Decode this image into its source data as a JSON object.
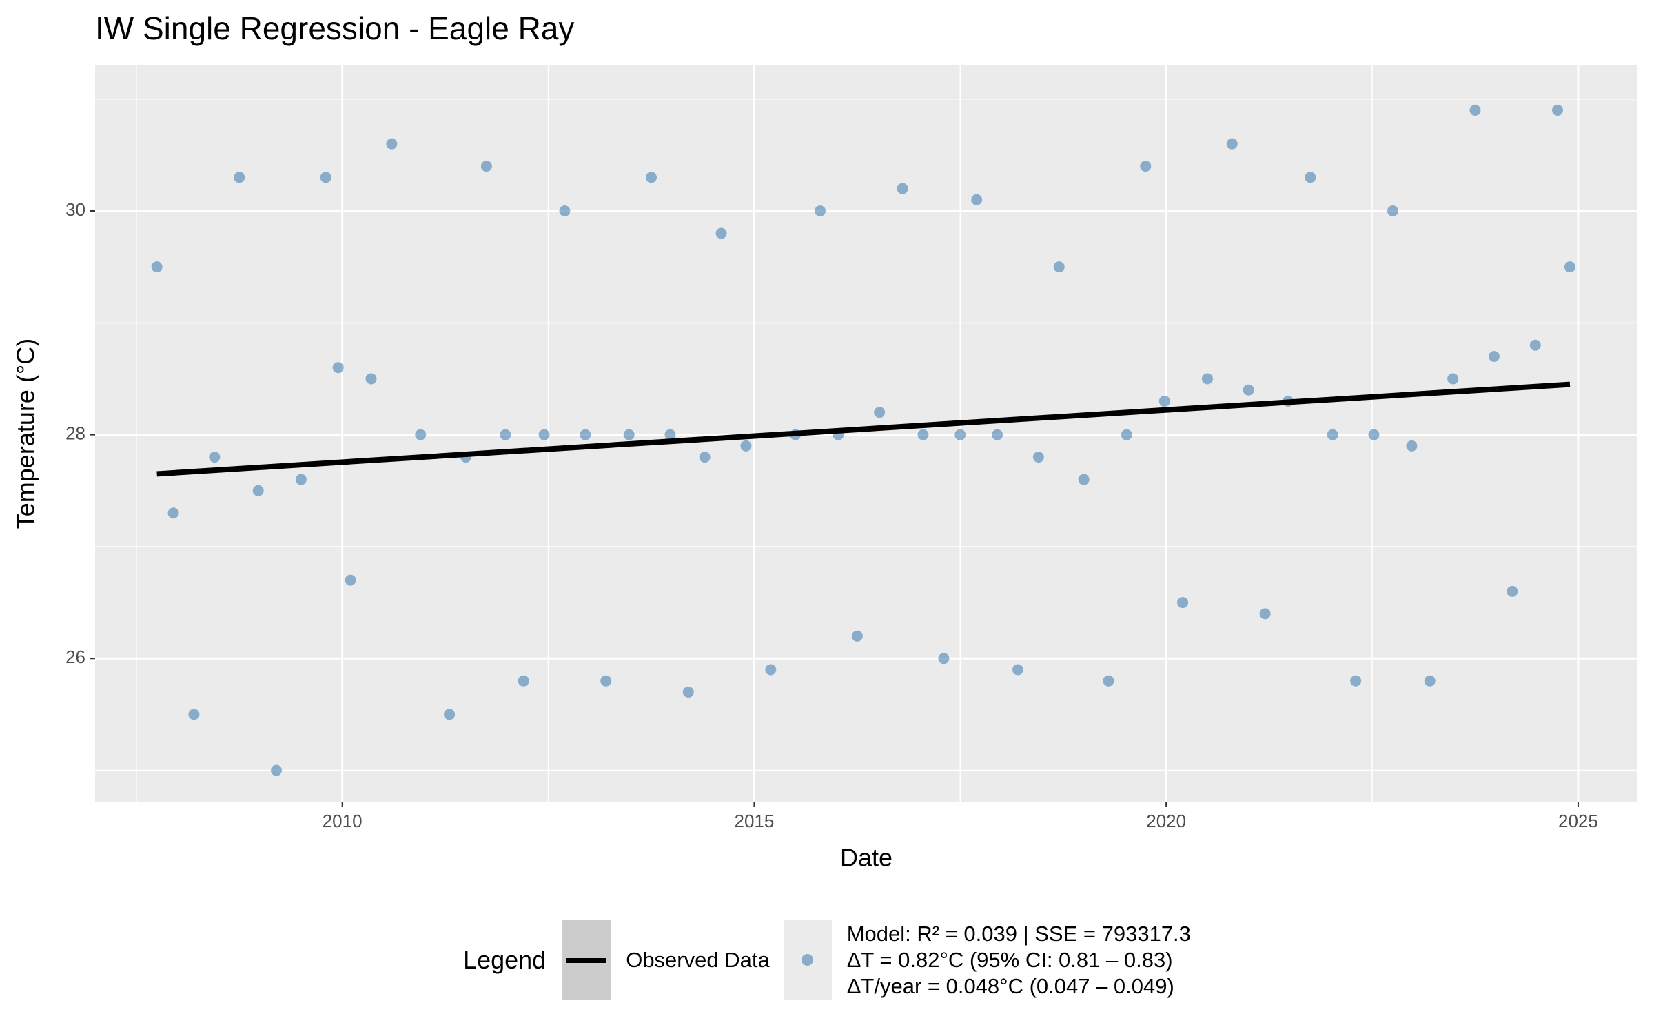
{
  "chart_data": {
    "type": "scatter",
    "title": "IW Single Regression - Eagle Ray",
    "x_label": "Date",
    "y_label": "Temperature (°C)",
    "xlim": [
      2007.0,
      2025.72
    ],
    "ylim": [
      24.72,
      31.3
    ],
    "xticks": [
      2010,
      2015,
      2020,
      2025
    ],
    "yticks": [
      26,
      28,
      30
    ],
    "grid": true,
    "legend_title": "Legend",
    "legend_position": "bottom",
    "series": [
      {
        "name": "Observed Data",
        "type": "line",
        "color": "#000000",
        "x": [
          2007.75,
          2024.9
        ],
        "values": [
          27.65,
          28.45
        ]
      },
      {
        "name": "Model: R² = 0.039 | SSE = 793317.3\nΔT = 0.82°C (95% CI: 0.81 – 0.83)\nΔT/year = 0.048°C (0.047 – 0.049)",
        "type": "scatter",
        "color": "#4682b4",
        "x": [
          2007.75,
          2007.95,
          2008.2,
          2008.45,
          2008.75,
          2008.98,
          2009.2,
          2009.5,
          2009.8,
          2009.95,
          2010.1,
          2010.35,
          2010.6,
          2010.95,
          2011.3,
          2011.5,
          2011.75,
          2011.98,
          2012.2,
          2012.45,
          2012.7,
          2012.95,
          2013.2,
          2013.48,
          2013.75,
          2013.98,
          2014.2,
          2014.4,
          2014.6,
          2014.9,
          2015.2,
          2015.5,
          2015.8,
          2016.02,
          2016.25,
          2016.52,
          2016.8,
          2017.05,
          2017.3,
          2017.5,
          2017.7,
          2017.95,
          2018.2,
          2018.45,
          2018.7,
          2019.0,
          2019.3,
          2019.52,
          2019.75,
          2019.98,
          2020.2,
          2020.5,
          2020.8,
          2021.0,
          2021.2,
          2021.48,
          2021.75,
          2022.02,
          2022.3,
          2022.52,
          2022.75,
          2022.98,
          2023.2,
          2023.48,
          2023.75,
          2023.98,
          2024.2,
          2024.48,
          2024.75,
          2024.9
        ],
        "values": [
          29.5,
          27.3,
          25.5,
          27.8,
          30.3,
          27.5,
          25.0,
          27.6,
          30.3,
          28.6,
          26.7,
          28.5,
          30.6,
          28.0,
          25.5,
          27.8,
          30.4,
          28.0,
          25.8,
          28.0,
          30.0,
          28.0,
          25.8,
          28.0,
          30.3,
          28.0,
          25.7,
          27.8,
          29.8,
          27.9,
          25.9,
          28.0,
          30.0,
          28.0,
          26.2,
          28.2,
          30.2,
          28.0,
          26.0,
          28.0,
          30.1,
          28.0,
          25.9,
          27.8,
          29.5,
          27.6,
          25.8,
          28.0,
          30.4,
          28.3,
          26.5,
          28.5,
          30.6,
          28.4,
          26.4,
          28.3,
          30.3,
          28.0,
          25.8,
          28.0,
          30.0,
          27.9,
          25.8,
          28.5,
          30.9,
          28.7,
          26.6,
          28.8,
          30.9,
          29.5
        ]
      }
    ]
  }
}
